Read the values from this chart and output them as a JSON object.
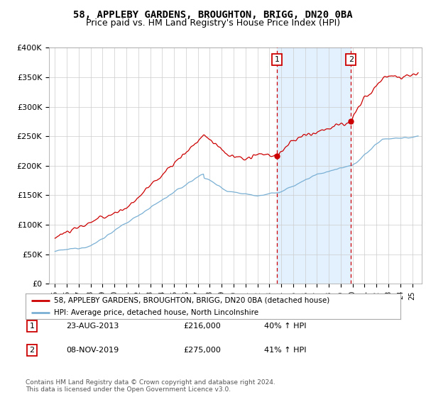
{
  "title": "58, APPLEBY GARDENS, BROUGHTON, BRIGG, DN20 0BA",
  "subtitle": "Price paid vs. HM Land Registry's House Price Index (HPI)",
  "property_color": "#cc0000",
  "hpi_color": "#7ab0d4",
  "shade_color": "#ddeeff",
  "vline_color": "#cc0000",
  "marker1_date": 2013.65,
  "marker2_date": 2019.85,
  "marker1_price": 216000,
  "marker2_price": 275000,
  "legend_property": "58, APPLEBY GARDENS, BROUGHTON, BRIGG, DN20 0BA (detached house)",
  "legend_hpi": "HPI: Average price, detached house, North Lincolnshire",
  "annotation1": [
    "1",
    "23-AUG-2013",
    "£216,000",
    "40% ↑ HPI"
  ],
  "annotation2": [
    "2",
    "08-NOV-2019",
    "£275,000",
    "41% ↑ HPI"
  ],
  "footer": "Contains HM Land Registry data © Crown copyright and database right 2024.\nThis data is licensed under the Open Government Licence v3.0.",
  "title_fontsize": 10,
  "subtitle_fontsize": 9,
  "background_color": "#ffffff",
  "ylim": [
    0,
    400000
  ],
  "yticks": [
    0,
    50000,
    100000,
    150000,
    200000,
    250000,
    300000,
    350000,
    400000
  ],
  "ytick_labels": [
    "£0",
    "£50K",
    "£100K",
    "£150K",
    "£200K",
    "£250K",
    "£300K",
    "£350K",
    "£400K"
  ]
}
